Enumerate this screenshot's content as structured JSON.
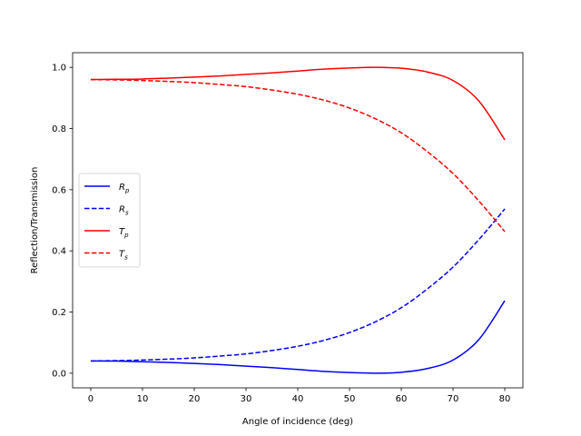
{
  "chart_data": {
    "type": "line",
    "title": "",
    "xlabel": "Angle of incidence (deg)",
    "ylabel": "Reflection/Transmission",
    "xlim": [
      -3.5,
      83.5
    ],
    "ylim": [
      -0.048,
      1.048
    ],
    "xticks": [
      0,
      10,
      20,
      30,
      40,
      50,
      60,
      70,
      80
    ],
    "yticks": [
      0.0,
      0.2,
      0.4,
      0.6,
      0.8,
      1.0
    ],
    "xtick_labels": [
      "0",
      "10",
      "20",
      "30",
      "40",
      "50",
      "60",
      "70",
      "80"
    ],
    "ytick_labels": [
      "0.0",
      "0.2",
      "0.4",
      "0.6",
      "0.8",
      "1.0"
    ],
    "grid": false,
    "legend_position": "center-left",
    "x": [
      0,
      5,
      10,
      15,
      20,
      25,
      30,
      35,
      40,
      45,
      50,
      55,
      60,
      65,
      70,
      75,
      80
    ],
    "series": [
      {
        "name": "R",
        "subscript": "p",
        "color": "#0000ff",
        "dash": "solid",
        "values": [
          0.04,
          0.0395,
          0.0375,
          0.035,
          0.032,
          0.028,
          0.023,
          0.018,
          0.012,
          0.006,
          0.002,
          0.0,
          0.003,
          0.015,
          0.043,
          0.11,
          0.237
        ]
      },
      {
        "name": "R",
        "subscript": "s",
        "color": "#0000ff",
        "dash": "dashed",
        "values": [
          0.04,
          0.041,
          0.043,
          0.046,
          0.05,
          0.056,
          0.063,
          0.074,
          0.088,
          0.107,
          0.133,
          0.168,
          0.214,
          0.275,
          0.347,
          0.437,
          0.537
        ]
      },
      {
        "name": "T",
        "subscript": "p",
        "color": "#ff0000",
        "dash": "solid",
        "values": [
          0.96,
          0.961,
          0.962,
          0.965,
          0.968,
          0.972,
          0.977,
          0.982,
          0.988,
          0.994,
          0.998,
          1.0,
          0.997,
          0.985,
          0.957,
          0.89,
          0.763
        ]
      },
      {
        "name": "T",
        "subscript": "s",
        "color": "#ff0000",
        "dash": "dashed",
        "values": [
          0.96,
          0.959,
          0.957,
          0.954,
          0.95,
          0.944,
          0.937,
          0.926,
          0.912,
          0.893,
          0.867,
          0.832,
          0.786,
          0.725,
          0.653,
          0.563,
          0.463
        ]
      }
    ]
  }
}
